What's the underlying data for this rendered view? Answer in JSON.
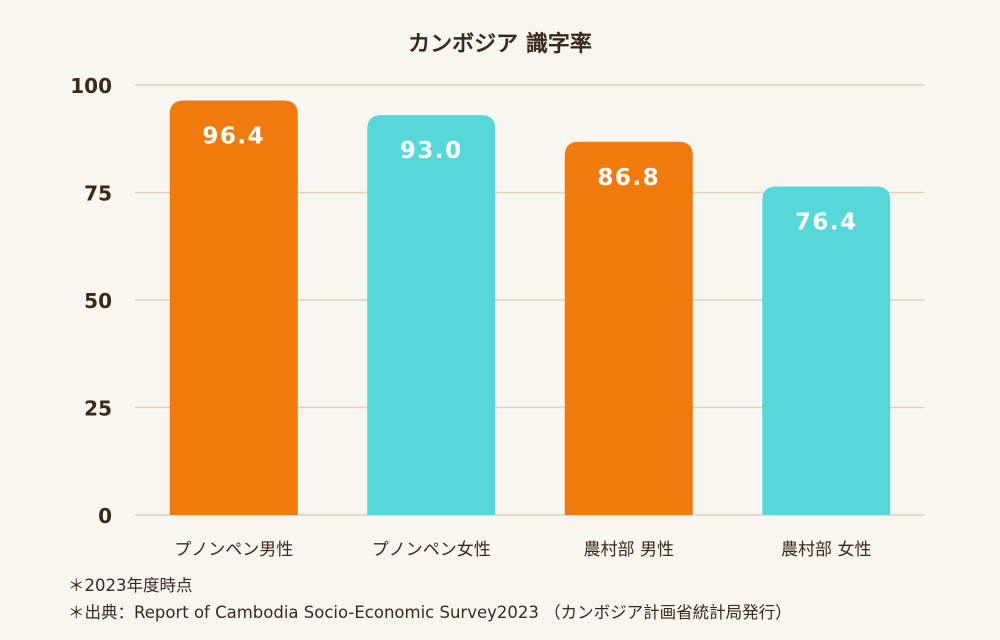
{
  "chart_data": {
    "type": "bar",
    "title": "カンボジア 識字率",
    "categories": [
      "プノンペン男性",
      "プノンペン女性",
      "農村部 男性",
      "農村部 女性"
    ],
    "values": [
      96.4,
      93.0,
      86.8,
      76.4
    ],
    "value_labels": [
      "96.4",
      "93.0",
      "86.8",
      "76.4"
    ],
    "bar_colors": [
      "#f07a0c",
      "#56d8d8",
      "#f07a0c",
      "#56d8d8"
    ],
    "ylim": [
      0,
      100
    ],
    "yticks": [
      0,
      25,
      50,
      75,
      100
    ],
    "xlabel": "",
    "ylabel": "",
    "grid": true
  },
  "notes": {
    "line1": "＊2023年度時点",
    "line2": "＊出典：Report of Cambodia Socio-Economic Survey2023 （カンボジア計画省統計局発行）"
  },
  "colors": {
    "background": "#f8f6f1",
    "grid": "#ddd3c0",
    "text": "#3a2a1e",
    "value_label": "#ffffff"
  }
}
